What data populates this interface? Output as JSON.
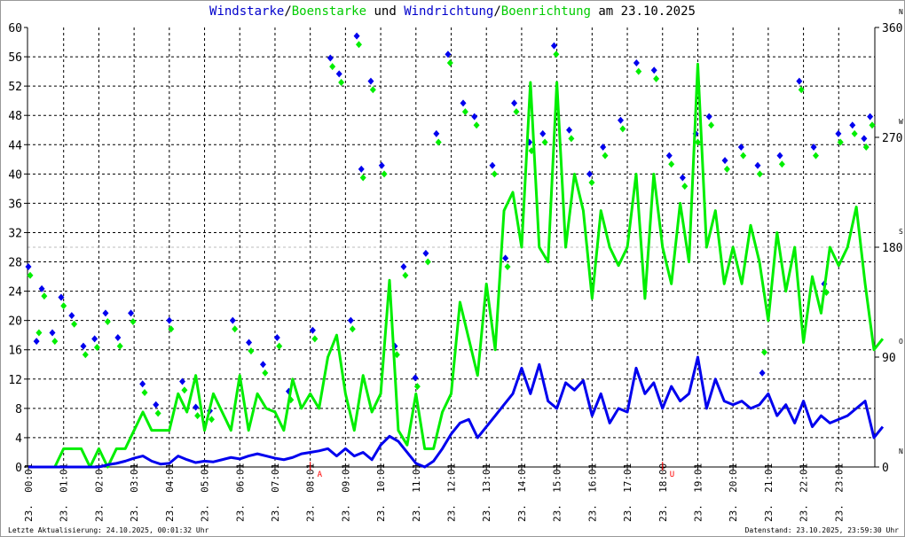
{
  "chart_data": {
    "type": "line",
    "title_parts": [
      {
        "text": "Windstarke",
        "color": "#0000cc"
      },
      {
        "text": "/",
        "color": "#000000"
      },
      {
        "text": "Boenstarke",
        "color": "#00cc00"
      },
      {
        "text": " und ",
        "color": "#000000"
      },
      {
        "text": "Windrichtung",
        "color": "#0000cc"
      },
      {
        "text": "/",
        "color": "#000000"
      },
      {
        "text": "Boenrichtung",
        "color": "#00cc00"
      },
      {
        "text": " am 23.10.2025",
        "color": "#000000"
      }
    ],
    "ylim_left": [
      0,
      60
    ],
    "yticks_left": [
      0,
      4,
      8,
      12,
      16,
      20,
      24,
      28,
      32,
      36,
      40,
      44,
      48,
      52,
      56,
      60
    ],
    "ylim_right": [
      0,
      360
    ],
    "yticks_right": [
      {
        "value": 0,
        "label": "0",
        "dir": "N"
      },
      {
        "value": 90,
        "label": "90",
        "dir": "O"
      },
      {
        "value": 180,
        "label": "180",
        "dir": "S"
      },
      {
        "value": 270,
        "label": "270",
        "dir": "W"
      },
      {
        "value": 360,
        "label": "360",
        "dir": "N"
      }
    ],
    "xlim_hours": [
      0,
      24
    ],
    "xticks": [
      {
        "h": 0,
        "label": "23. 00:01"
      },
      {
        "h": 1,
        "label": "23. 01:01"
      },
      {
        "h": 2,
        "label": "23. 02:01"
      },
      {
        "h": 3,
        "label": "23. 03:01"
      },
      {
        "h": 4,
        "label": "23. 04:01"
      },
      {
        "h": 5,
        "label": "23. 05:01"
      },
      {
        "h": 6,
        "label": "23. 06:01"
      },
      {
        "h": 7,
        "label": "23. 07:01"
      },
      {
        "h": 8,
        "label": "23. 08:01"
      },
      {
        "h": 9,
        "label": "23. 09:01"
      },
      {
        "h": 10,
        "label": "23. 10:01"
      },
      {
        "h": 11,
        "label": "23. 11:01"
      },
      {
        "h": 12,
        "label": "23. 12:01"
      },
      {
        "h": 13,
        "label": "23. 13:01"
      },
      {
        "h": 14,
        "label": "23. 14:01"
      },
      {
        "h": 15,
        "label": "23. 15:01"
      },
      {
        "h": 16,
        "label": "23. 16:01"
      },
      {
        "h": 17,
        "label": "23. 17:01"
      },
      {
        "h": 18,
        "label": "23. 18:00"
      },
      {
        "h": 19,
        "label": "23. 19:01"
      },
      {
        "h": 20,
        "label": "23. 20:01"
      },
      {
        "h": 21,
        "label": "23. 21:01"
      },
      {
        "h": 22,
        "label": "23. 22:01"
      },
      {
        "h": 23,
        "label": "23. 23:01"
      }
    ],
    "markers": [
      {
        "h": 8.0,
        "label": "A",
        "color": "#ff0000"
      },
      {
        "h": 18.0,
        "label": "U",
        "color": "#ff0000"
      }
    ],
    "grid": true,
    "step_hours": 0.25,
    "series": [
      {
        "name": "Windstarke",
        "color": "#0000ee",
        "values": [
          0,
          0,
          0,
          0,
          0,
          0,
          0,
          0,
          0,
          0.3,
          0.5,
          0.8,
          1.2,
          1.5,
          0.8,
          0.4,
          0.5,
          1.5,
          1.0,
          0.6,
          0.8,
          0.7,
          1.0,
          1.3,
          1.1,
          1.5,
          1.8,
          1.5,
          1.2,
          1.0,
          1.3,
          1.8,
          2.0,
          2.2,
          2.5,
          1.5,
          2.5,
          1.5,
          2.0,
          1.0,
          3.0,
          4.2,
          3.5,
          2.0,
          0.5,
          0,
          0.8,
          2.5,
          4.5,
          6,
          6.5,
          4,
          5.5,
          7,
          8.5,
          10,
          13.5,
          10,
          14,
          9,
          8,
          11.5,
          10.5,
          11.8,
          7,
          10,
          6,
          8,
          7.5,
          13.5,
          10,
          11.5,
          8,
          11,
          9,
          10,
          15,
          8,
          12,
          9,
          8.5,
          9,
          8,
          8.5,
          10,
          7,
          8.5,
          6,
          9,
          5.5,
          7,
          6,
          6.5,
          7,
          8,
          9,
          4,
          5.5
        ]
      },
      {
        "name": "Boenstarke",
        "color": "#00ee00",
        "values": [
          0,
          0,
          0,
          0,
          2.5,
          2.5,
          2.5,
          0,
          2.5,
          0,
          2.5,
          2.5,
          5,
          7.5,
          5,
          5,
          5,
          10,
          7.5,
          12.5,
          5,
          10,
          7.5,
          5,
          12.5,
          5,
          10,
          8,
          7.5,
          5,
          12,
          8,
          10,
          8,
          15,
          18,
          10,
          5,
          12.5,
          7.5,
          10,
          25.5,
          5,
          3,
          10,
          2.5,
          2.5,
          7.5,
          10,
          22.5,
          17.5,
          12.5,
          25,
          16,
          35,
          37.5,
          30,
          52.5,
          30,
          28,
          52.5,
          30,
          40,
          35,
          23,
          35,
          30,
          27.5,
          30,
          40,
          23,
          40,
          30,
          25,
          36,
          28,
          55,
          30,
          35,
          25,
          30,
          25,
          33,
          28,
          20,
          32,
          24,
          30,
          17,
          26,
          21,
          30,
          27.5,
          30,
          35.5,
          25,
          16,
          17.5
        ]
      }
    ],
    "direction_series": [
      {
        "name": "Windrichtung",
        "color": "#0000ee",
        "points": [
          [
            0.0,
            164
          ],
          [
            0.23,
            103
          ],
          [
            0.38,
            146
          ],
          [
            0.68,
            110
          ],
          [
            0.93,
            139
          ],
          [
            1.23,
            124
          ],
          [
            1.56,
            99
          ],
          [
            1.88,
            105
          ],
          [
            2.19,
            126
          ],
          [
            2.54,
            106
          ],
          [
            2.91,
            126
          ],
          [
            3.24,
            68
          ],
          [
            3.62,
            51
          ],
          [
            4.0,
            120
          ],
          [
            4.37,
            70
          ],
          [
            4.75,
            49
          ],
          [
            5.15,
            46
          ],
          [
            5.8,
            120
          ],
          [
            6.26,
            102
          ],
          [
            6.66,
            84
          ],
          [
            7.06,
            106
          ],
          [
            7.39,
            62
          ],
          [
            8.07,
            112
          ],
          [
            8.57,
            335
          ],
          [
            8.82,
            322
          ],
          [
            9.15,
            120
          ],
          [
            9.32,
            353
          ],
          [
            9.45,
            244
          ],
          [
            9.72,
            316
          ],
          [
            10.03,
            247
          ],
          [
            10.4,
            99
          ],
          [
            10.65,
            164
          ],
          [
            10.98,
            73
          ],
          [
            11.28,
            175
          ],
          [
            11.58,
            273
          ],
          [
            11.91,
            338
          ],
          [
            12.34,
            298
          ],
          [
            12.66,
            287
          ],
          [
            13.17,
            247
          ],
          [
            13.54,
            171
          ],
          [
            13.79,
            298
          ],
          [
            14.22,
            266
          ],
          [
            14.6,
            273
          ],
          [
            14.92,
            345
          ],
          [
            15.35,
            276
          ],
          [
            15.93,
            240
          ],
          [
            16.31,
            262
          ],
          [
            16.81,
            284
          ],
          [
            17.26,
            331
          ],
          [
            17.76,
            325
          ],
          [
            18.19,
            255
          ],
          [
            18.57,
            237
          ],
          [
            18.94,
            273
          ],
          [
            19.32,
            287
          ],
          [
            19.77,
            251
          ],
          [
            20.23,
            262
          ],
          [
            20.7,
            247
          ],
          [
            20.83,
            77
          ],
          [
            21.33,
            255
          ],
          [
            21.88,
            316
          ],
          [
            22.29,
            262
          ],
          [
            22.59,
            150
          ],
          [
            22.99,
            273
          ],
          [
            23.39,
            280
          ],
          [
            23.72,
            269
          ],
          [
            23.89,
            287
          ]
        ]
      },
      {
        "name": "Boenrichtung",
        "color": "#00ee00",
        "points": [
          [
            0.05,
            157
          ],
          [
            0.3,
            110
          ],
          [
            0.45,
            140
          ],
          [
            0.75,
            103
          ],
          [
            1.0,
            132
          ],
          [
            1.3,
            117
          ],
          [
            1.62,
            92
          ],
          [
            1.95,
            98
          ],
          [
            2.25,
            119
          ],
          [
            2.6,
            99
          ],
          [
            2.97,
            119
          ],
          [
            3.3,
            61
          ],
          [
            3.68,
            44
          ],
          [
            4.05,
            113
          ],
          [
            4.43,
            63
          ],
          [
            4.8,
            42
          ],
          [
            5.2,
            39
          ],
          [
            5.86,
            113
          ],
          [
            6.32,
            95
          ],
          [
            6.72,
            77
          ],
          [
            7.12,
            99
          ],
          [
            7.45,
            55
          ],
          [
            8.13,
            105
          ],
          [
            8.63,
            328
          ],
          [
            8.88,
            315
          ],
          [
            9.2,
            113
          ],
          [
            9.38,
            346
          ],
          [
            9.5,
            237
          ],
          [
            9.78,
            309
          ],
          [
            10.1,
            240
          ],
          [
            10.46,
            92
          ],
          [
            10.7,
            157
          ],
          [
            11.04,
            66
          ],
          [
            11.34,
            168
          ],
          [
            11.64,
            266
          ],
          [
            11.97,
            331
          ],
          [
            12.4,
            291
          ],
          [
            12.72,
            280
          ],
          [
            13.23,
            240
          ],
          [
            13.6,
            164
          ],
          [
            13.85,
            291
          ],
          [
            14.28,
            259
          ],
          [
            14.66,
            266
          ],
          [
            14.98,
            338
          ],
          [
            15.41,
            269
          ],
          [
            15.99,
            233
          ],
          [
            16.37,
            255
          ],
          [
            16.87,
            277
          ],
          [
            17.32,
            324
          ],
          [
            17.82,
            318
          ],
          [
            18.25,
            248
          ],
          [
            18.63,
            230
          ],
          [
            19.0,
            266
          ],
          [
            19.38,
            280
          ],
          [
            19.83,
            244
          ],
          [
            20.29,
            255
          ],
          [
            20.76,
            240
          ],
          [
            20.89,
            94
          ],
          [
            21.39,
            248
          ],
          [
            21.94,
            309
          ],
          [
            22.35,
            255
          ],
          [
            22.65,
            143
          ],
          [
            23.05,
            266
          ],
          [
            23.45,
            273
          ],
          [
            23.78,
            262
          ],
          [
            23.95,
            280
          ]
        ]
      }
    ]
  },
  "footer": {
    "left": "Letzte Aktualisierung: 24.10.2025, 00:01:32 Uhr",
    "right": "Datenstand: 23.10.2025, 23:59:30 Uhr"
  }
}
